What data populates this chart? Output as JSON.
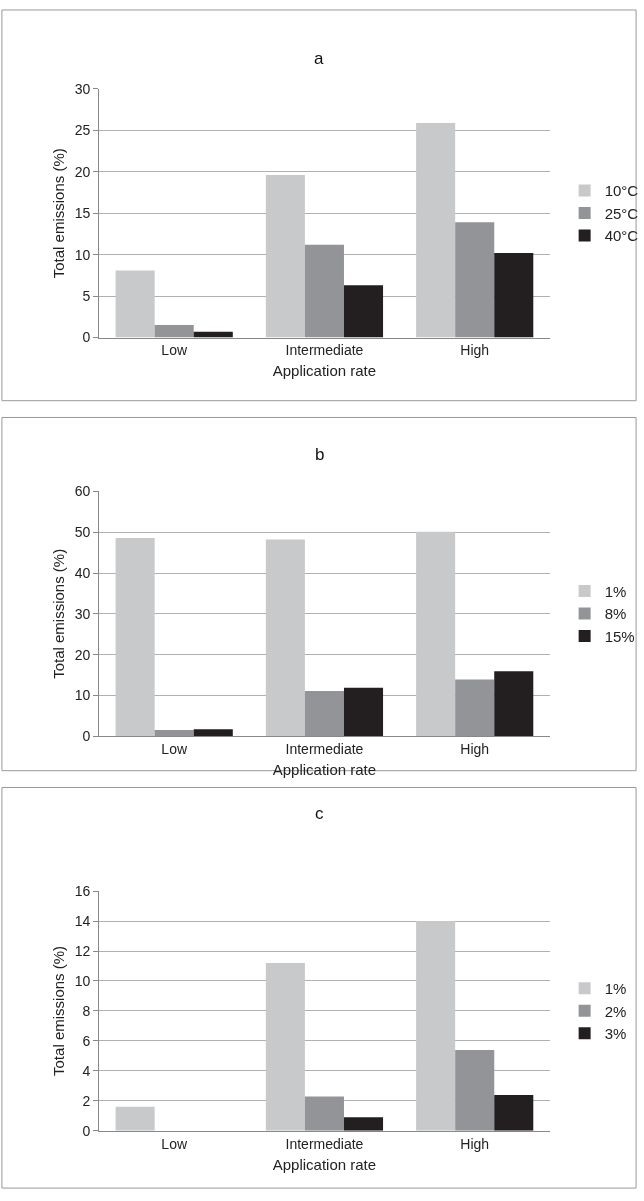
{
  "chart_data": [
    {
      "type": "bar",
      "title": "a",
      "xlabel": "Application rate",
      "ylabel": "Total emissions (%)",
      "categories": [
        "Low",
        "Intermediate",
        "High"
      ],
      "ylim": [
        0,
        30
      ],
      "yticks": [
        0,
        5,
        10,
        15,
        20,
        25,
        30
      ],
      "grid": "y",
      "legend": "right",
      "series": [
        {
          "name": "10°C",
          "color": "#c8c9cb",
          "values": [
            8.1,
            19.6,
            25.9
          ]
        },
        {
          "name": "25°C",
          "color": "#939497",
          "values": [
            1.5,
            11.2,
            13.9
          ]
        },
        {
          "name": "40°C",
          "color": "#231f20",
          "values": [
            0.7,
            6.3,
            10.2
          ]
        }
      ]
    },
    {
      "type": "bar",
      "title": "b",
      "xlabel": "Application rate",
      "ylabel": "Total emissions (%)",
      "categories": [
        "Low",
        "Intermediate",
        "High"
      ],
      "ylim": [
        0,
        60
      ],
      "yticks": [
        0,
        10,
        20,
        30,
        40,
        50,
        60
      ],
      "grid": "y",
      "legend": "right",
      "series": [
        {
          "name": "1%",
          "color": "#c8c9cb",
          "values": [
            48.6,
            48.2,
            50.1
          ]
        },
        {
          "name": "8%",
          "color": "#939497",
          "values": [
            1.5,
            11.1,
            13.9
          ]
        },
        {
          "name": "15%",
          "color": "#231f20",
          "values": [
            1.7,
            11.9,
            15.9
          ]
        }
      ]
    },
    {
      "type": "bar",
      "title": "c",
      "xlabel": "Application rate",
      "ylabel": "Total emissions (%)",
      "categories": [
        "Low",
        "Intermediate",
        "High"
      ],
      "ylim": [
        0,
        16
      ],
      "yticks": [
        0,
        2,
        4,
        6,
        8,
        10,
        12,
        14,
        16
      ],
      "grid": "y",
      "legend": "right",
      "series": [
        {
          "name": "1%",
          "color": "#c8c9cb",
          "values": [
            1.6,
            11.2,
            14.0
          ]
        },
        {
          "name": "2%",
          "color": "#939497",
          "values": [
            0,
            2.3,
            5.4
          ]
        },
        {
          "name": "3%",
          "color": "#231f20",
          "values": [
            0,
            0.9,
            2.4
          ]
        }
      ]
    }
  ]
}
